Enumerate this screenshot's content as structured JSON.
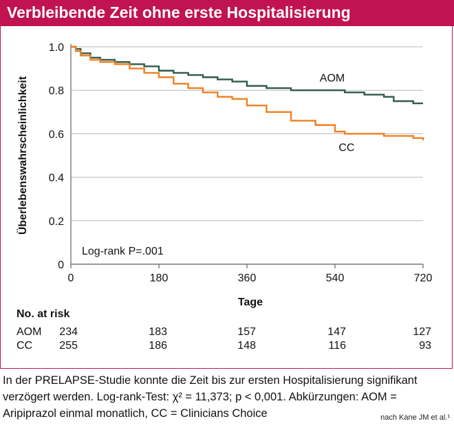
{
  "header": {
    "title": "Verbleibende Zeit ohne erste Hospitalisierung"
  },
  "chart_data": {
    "type": "line",
    "ylabel": "Überlebenswahrscheinlichkeit",
    "xlabel": "Tage",
    "xlim": [
      0,
      720
    ],
    "ylim": [
      0,
      1.0
    ],
    "x_ticks": [
      "0",
      "180",
      "360",
      "540",
      "720"
    ],
    "y_ticks": [
      "0",
      "0.2",
      "0.4",
      "0.6",
      "0.8",
      "1.0"
    ],
    "annotation": "Log-rank P=.001",
    "grid": "horizontal",
    "series": [
      {
        "name": "AOM",
        "color": "#2d5a4a",
        "x": [
          0,
          10,
          20,
          40,
          60,
          90,
          120,
          150,
          180,
          210,
          240,
          270,
          300,
          330,
          360,
          400,
          450,
          500,
          540,
          560,
          600,
          640,
          660,
          680,
          700,
          720
        ],
        "y": [
          1.0,
          0.99,
          0.97,
          0.95,
          0.94,
          0.93,
          0.92,
          0.91,
          0.89,
          0.88,
          0.87,
          0.86,
          0.85,
          0.84,
          0.82,
          0.81,
          0.8,
          0.8,
          0.8,
          0.79,
          0.78,
          0.77,
          0.75,
          0.75,
          0.74,
          0.74
        ]
      },
      {
        "name": "CC",
        "color": "#f07f1e",
        "x": [
          0,
          10,
          20,
          40,
          60,
          90,
          120,
          150,
          180,
          210,
          240,
          270,
          300,
          330,
          360,
          400,
          450,
          500,
          540,
          560,
          600,
          640,
          660,
          680,
          700,
          720
        ],
        "y": [
          1.0,
          0.98,
          0.96,
          0.94,
          0.93,
          0.92,
          0.9,
          0.88,
          0.86,
          0.83,
          0.81,
          0.79,
          0.77,
          0.76,
          0.73,
          0.7,
          0.66,
          0.64,
          0.61,
          0.6,
          0.6,
          0.59,
          0.59,
          0.59,
          0.58,
          0.57
        ]
      }
    ]
  },
  "risk": {
    "title": "No. at risk",
    "rows": [
      {
        "label": "AOM",
        "values": [
          "234",
          "183",
          "157",
          "147",
          "127"
        ]
      },
      {
        "label": "CC",
        "values": [
          "255",
          "186",
          "148",
          "116",
          "93"
        ]
      }
    ]
  },
  "caption": "In der PRELAPSE-Studie konnte die Zeit bis zur ersten Hospitalisierung signifikant verzögert werden. Log-rank-Test: χ² = 11,373; p < 0,001. Abkürzungen: AOM = Aripiprazol einmal monatlich, CC = Clinicians Choice",
  "source": "nach Kane JM et al.¹"
}
